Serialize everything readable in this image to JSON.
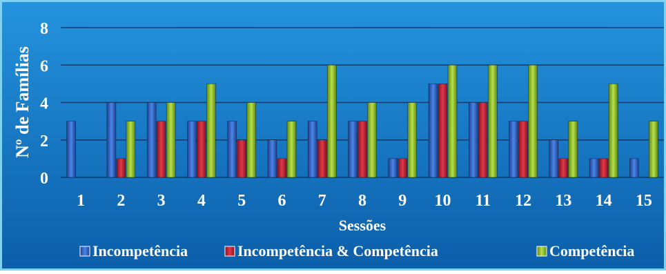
{
  "chart_data": {
    "type": "bar",
    "categories": [
      "1",
      "2",
      "3",
      "4",
      "5",
      "6",
      "7",
      "8",
      "9",
      "10",
      "11",
      "12",
      "13",
      "14",
      "15"
    ],
    "series": [
      {
        "name": "Incompetência",
        "values": [
          3,
          4,
          4,
          3,
          3,
          2,
          3,
          3,
          1,
          5,
          4,
          3,
          2,
          1,
          1
        ]
      },
      {
        "name": "Incompetência & Competência",
        "values": [
          0,
          1,
          3,
          3,
          2,
          1,
          2,
          3,
          1,
          5,
          4,
          3,
          1,
          1,
          0
        ]
      },
      {
        "name": "Competência",
        "values": [
          0,
          3,
          4,
          5,
          4,
          3,
          6,
          4,
          4,
          6,
          6,
          6,
          3,
          5,
          3
        ]
      }
    ],
    "xlabel": "Sessões",
    "ylabel": "Nº de Famílias",
    "ylim": [
      0,
      8
    ],
    "yticks": [
      0,
      2,
      4,
      6,
      8
    ],
    "grid": true,
    "legend": "bottom"
  },
  "colors": {
    "background_top": "#1c8ad8",
    "background_bottom": "#0e63b0",
    "border": "#7fd3f2",
    "gridline": "#0a3d6e",
    "series": [
      "#3366cc",
      "#cc2233",
      "#99cc33"
    ]
  }
}
